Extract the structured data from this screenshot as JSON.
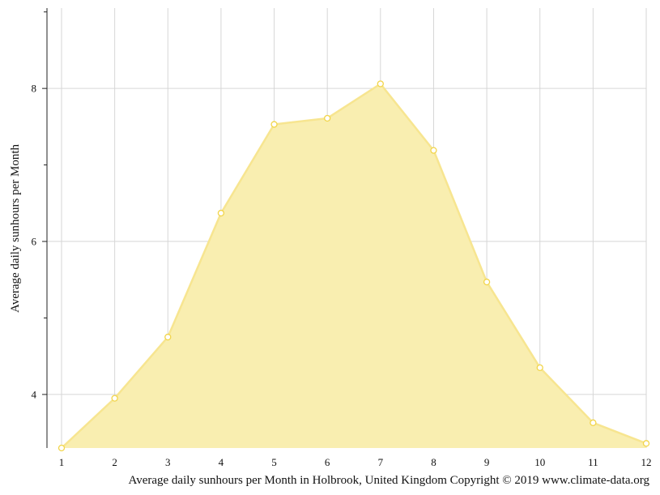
{
  "chart_data": {
    "type": "area",
    "x": [
      1,
      2,
      3,
      4,
      5,
      6,
      7,
      8,
      9,
      10,
      11,
      12
    ],
    "series": [
      {
        "values": [
          3.3,
          3.95,
          4.75,
          6.37,
          7.53,
          7.61,
          8.06,
          7.19,
          5.47,
          4.35,
          3.63,
          3.36
        ]
      }
    ],
    "ylabel": "Average daily sunhours per Month",
    "xlabel": "",
    "caption": "Average daily sunhours per Month in Holbrook, United Kingdom Copyright © 2019 www.climate-data.org",
    "xlim": [
      1,
      12
    ],
    "ylim": [
      3.3,
      9.05
    ],
    "y_labeled_ticks": [
      4,
      6,
      8
    ],
    "y_minor_ticks": [
      5,
      7,
      9
    ],
    "x_ticks": [
      1,
      2,
      3,
      4,
      5,
      6,
      7,
      8,
      9,
      10,
      11,
      12
    ],
    "grid": true,
    "colors": {
      "fill": "#f9eeb0",
      "line": "#f7e590",
      "marker_fill": "#ffffff",
      "marker_stroke": "#f2d54a",
      "grid": "#d6d6d6"
    }
  }
}
